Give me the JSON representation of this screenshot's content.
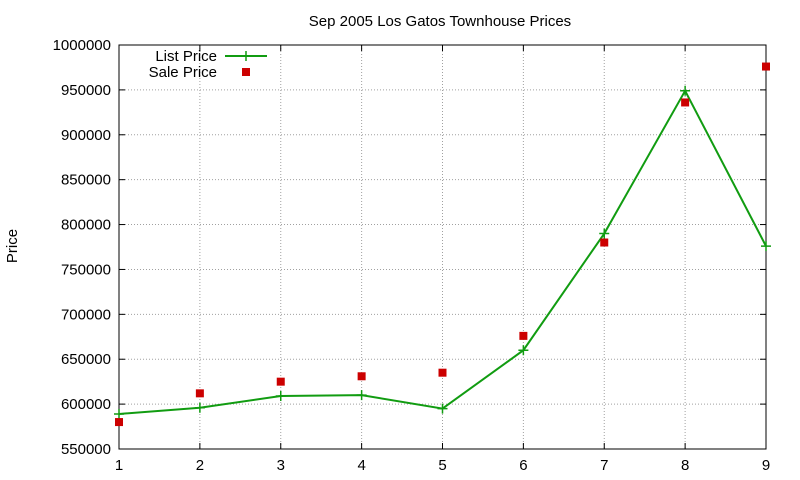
{
  "chart_data": {
    "type": "line",
    "title": "Sep 2005 Los Gatos Townhouse Prices",
    "xlabel": "",
    "ylabel": "Price",
    "xlim": [
      1,
      9
    ],
    "ylim": [
      550000,
      1000000
    ],
    "x_ticks": [
      1,
      2,
      3,
      4,
      5,
      6,
      7,
      8,
      9
    ],
    "y_ticks": [
      550000,
      600000,
      650000,
      700000,
      750000,
      800000,
      850000,
      900000,
      950000,
      1000000
    ],
    "grid": true,
    "legend_position": "top-left",
    "series": [
      {
        "name": "List Price",
        "style": "linespoints",
        "marker": "plus",
        "color": "#119c11",
        "x": [
          1,
          2,
          3,
          4,
          5,
          6,
          7,
          8,
          9
        ],
        "values": [
          589000,
          596000,
          609000,
          610000,
          595000,
          660000,
          790000,
          949000,
          776000
        ]
      },
      {
        "name": "Sale Price",
        "style": "points",
        "marker": "square",
        "color": "#cc0000",
        "x": [
          1,
          2,
          3,
          4,
          5,
          6,
          7,
          8,
          9
        ],
        "values": [
          580000,
          612000,
          625000,
          631000,
          635000,
          676000,
          780000,
          936000,
          976000
        ]
      }
    ]
  }
}
